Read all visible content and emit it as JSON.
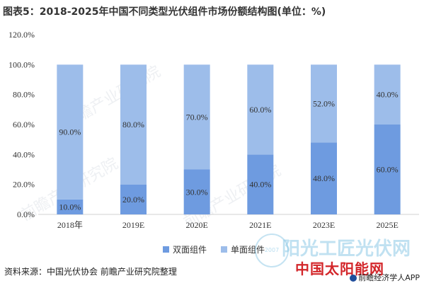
{
  "title": "图表5：2018-2025年中国不同类型光伏组件市场份额结构图(单位：%)",
  "source": "资料来源：中国光伏协会 前瞻产业研究院整理",
  "watermarks": {
    "faint": "前瞻产业研究院",
    "site": "阳光工匠光伏网",
    "seal_year": "2007",
    "brand": "中国太阳能网",
    "brand_sub": "前瞻经济学人APP"
  },
  "colors": {
    "bifacial": "#6e9be0",
    "monofacial": "#9dbdea",
    "brand": "#d3262a"
  },
  "chart_data": {
    "type": "bar",
    "stacked": true,
    "title": "图表5：2018-2025年中国不同类型光伏组件市场份额结构图(单位：%)",
    "categories": [
      "2018年",
      "2019E",
      "2020E",
      "2021E",
      "2023E",
      "2025E"
    ],
    "series": [
      {
        "name": "双面组件",
        "values": [
          10.0,
          20.0,
          30.0,
          40.0,
          48.0,
          60.0
        ]
      },
      {
        "name": "单面组件",
        "values": [
          90.0,
          80.0,
          70.0,
          60.0,
          52.0,
          40.0
        ]
      }
    ],
    "value_labels": [
      [
        "10.0%",
        "20.0%",
        "30.0%",
        "40.0%",
        "48.0%",
        "60.0%"
      ],
      [
        "90.0%",
        "80.0%",
        "70.0%",
        "60.0%",
        "52.0%",
        "40.0%"
      ]
    ],
    "yticks": [
      "0.0%",
      "20.0%",
      "40.0%",
      "60.0%",
      "80.0%",
      "100.0%",
      "120.0%"
    ],
    "ylim": [
      0,
      120
    ],
    "grid": false,
    "legend_position": "bottom"
  }
}
